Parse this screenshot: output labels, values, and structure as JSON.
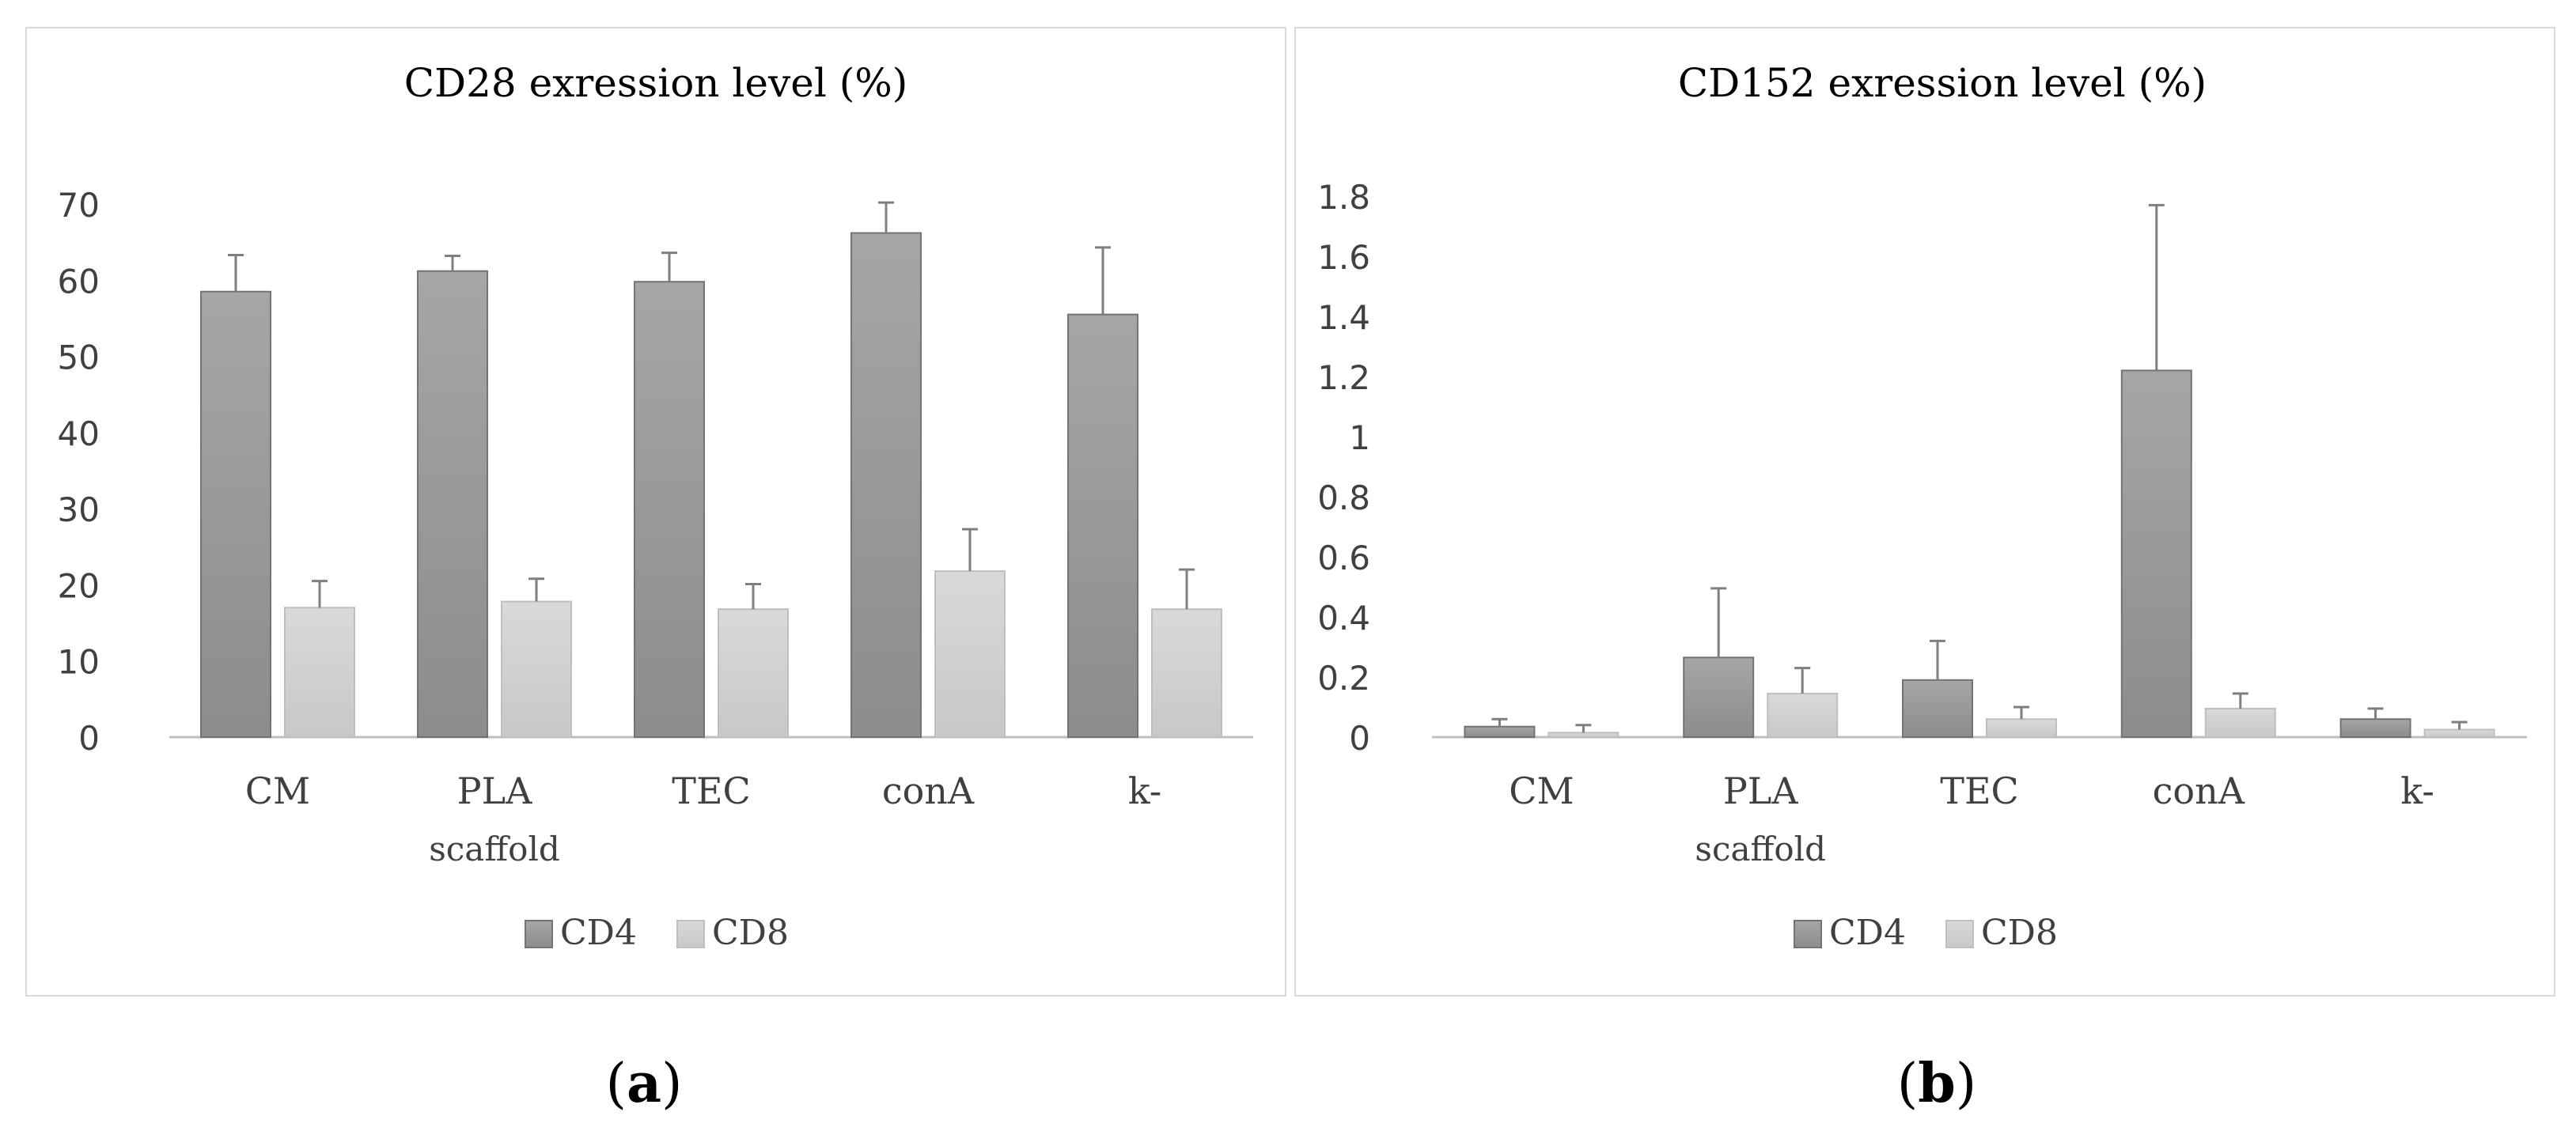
{
  "figure": {
    "captions": [
      {
        "open": "(",
        "letter": "a",
        "close": ")"
      },
      {
        "open": "(",
        "letter": "b",
        "close": ")"
      }
    ]
  },
  "chart_data": [
    {
      "type": "bar",
      "title": "CD28 exression level (%)",
      "categories": [
        "CM",
        "PLA\nscaffold",
        "TEC",
        "conA",
        "k-"
      ],
      "series": [
        {
          "name": "CD4",
          "values": [
            58.5,
            61.2,
            59.8,
            66.2,
            55.5
          ],
          "errors": [
            4.8,
            2.0,
            3.8,
            4.0,
            8.8
          ],
          "color": "#a6a6a6"
        },
        {
          "name": "CD8",
          "values": [
            17.0,
            17.8,
            16.8,
            21.8,
            16.8
          ],
          "errors": [
            3.5,
            3.0,
            3.3,
            5.5,
            5.2
          ],
          "color": "#d9d9d9"
        }
      ],
      "ylim": [
        0,
        70
      ],
      "yticks": [
        "0",
        "10",
        "20",
        "30",
        "40",
        "50",
        "60",
        "70"
      ],
      "xlabel": "",
      "ylabel": "",
      "grid": false,
      "legend": "bottom"
    },
    {
      "type": "bar",
      "title": "CD152 exression level (%)",
      "categories": [
        "CM",
        "PLA\nscaffold",
        "TEC",
        "conA",
        "k-"
      ],
      "series": [
        {
          "name": "CD4",
          "values": [
            0.035,
            0.265,
            0.19,
            1.22,
            0.06
          ],
          "errors": [
            0.025,
            0.23,
            0.13,
            0.55,
            0.035
          ],
          "color": "#a6a6a6"
        },
        {
          "name": "CD8",
          "values": [
            0.015,
            0.145,
            0.06,
            0.095,
            0.025
          ],
          "errors": [
            0.025,
            0.085,
            0.04,
            0.05,
            0.025
          ],
          "color": "#d9d9d9"
        }
      ],
      "ylim": [
        0,
        1.8
      ],
      "yticks": [
        "0",
        "0.2",
        "0.4",
        "0.6",
        "0.8",
        "1",
        "1.2",
        "1.4",
        "1.6",
        "1.8"
      ],
      "xlabel": "",
      "ylabel": "",
      "grid": false,
      "legend": "bottom"
    }
  ]
}
